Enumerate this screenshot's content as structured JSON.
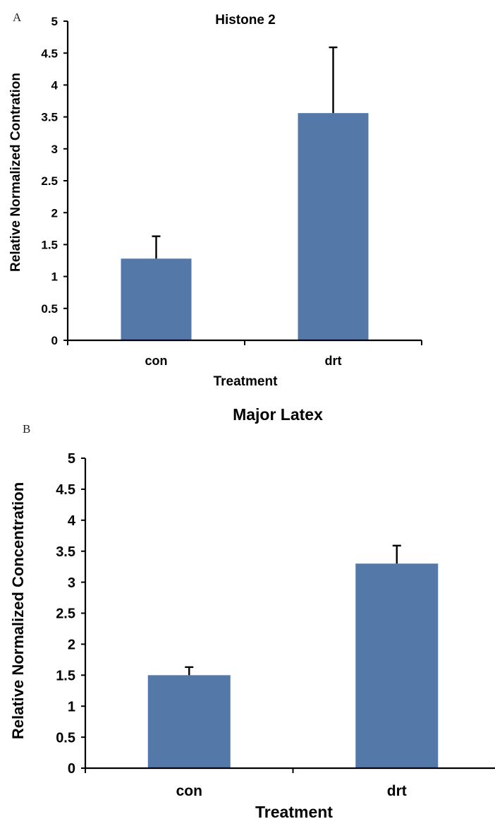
{
  "chart_data": [
    {
      "panel": "A",
      "type": "bar",
      "title": "Histone 2",
      "categories": [
        "con",
        "drt"
      ],
      "values": [
        1.28,
        3.56
      ],
      "errors": [
        0.35,
        1.03
      ],
      "xlabel": "Treatment",
      "ylabel": "Relative Normalized Contration",
      "ylim": [
        0,
        5
      ],
      "yticks": [
        "0",
        "0.5",
        "1",
        "1.5",
        "2",
        "2.5",
        "3",
        "3.5",
        "4",
        "4.5",
        "5"
      ],
      "grid": false,
      "legend": "none",
      "bar_color": "#5479a8"
    },
    {
      "panel": "B",
      "type": "bar",
      "title": "Major Latex",
      "categories": [
        "con",
        "drt"
      ],
      "values": [
        1.5,
        3.3
      ],
      "errors": [
        0.13,
        0.29
      ],
      "xlabel": "Treatment",
      "ylabel": "Relative Normalized Concentration",
      "ylim": [
        0,
        5
      ],
      "yticks": [
        "0",
        "0.5",
        "1",
        "1.5",
        "2",
        "2.5",
        "3",
        "3.5",
        "4",
        "4.5",
        "5"
      ],
      "grid": false,
      "legend": "none",
      "bar_color": "#5479a8"
    }
  ]
}
